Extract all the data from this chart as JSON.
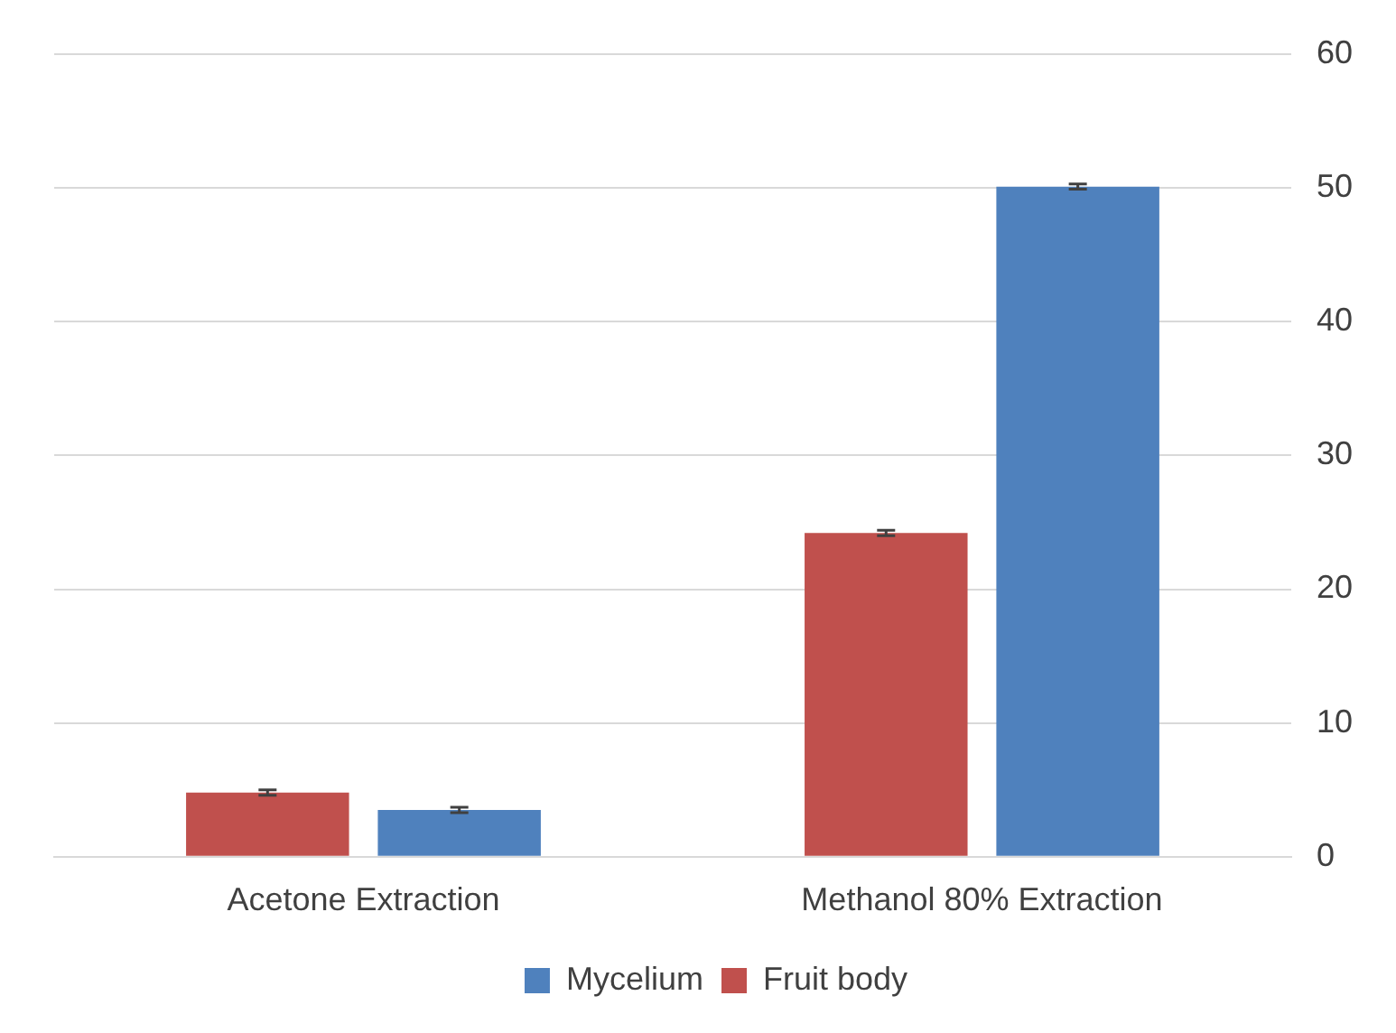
{
  "chart_data": {
    "type": "bar",
    "categories": [
      "Acetone Extraction",
      "Methanol 80% Extraction"
    ],
    "series": [
      {
        "name": "Fruit body",
        "color": "#c0504d",
        "values": [
          4.8,
          24.2
        ],
        "errors": [
          0.2,
          0.2
        ]
      },
      {
        "name": "Mycelium",
        "color": "#4f81bd",
        "values": [
          3.5,
          50.1
        ],
        "errors": [
          0.2,
          0.2
        ]
      }
    ],
    "ylim": [
      0,
      60
    ],
    "yticks": [
      0,
      10,
      20,
      30,
      40,
      50,
      60
    ],
    "grid": "y",
    "legend": "bottom"
  }
}
